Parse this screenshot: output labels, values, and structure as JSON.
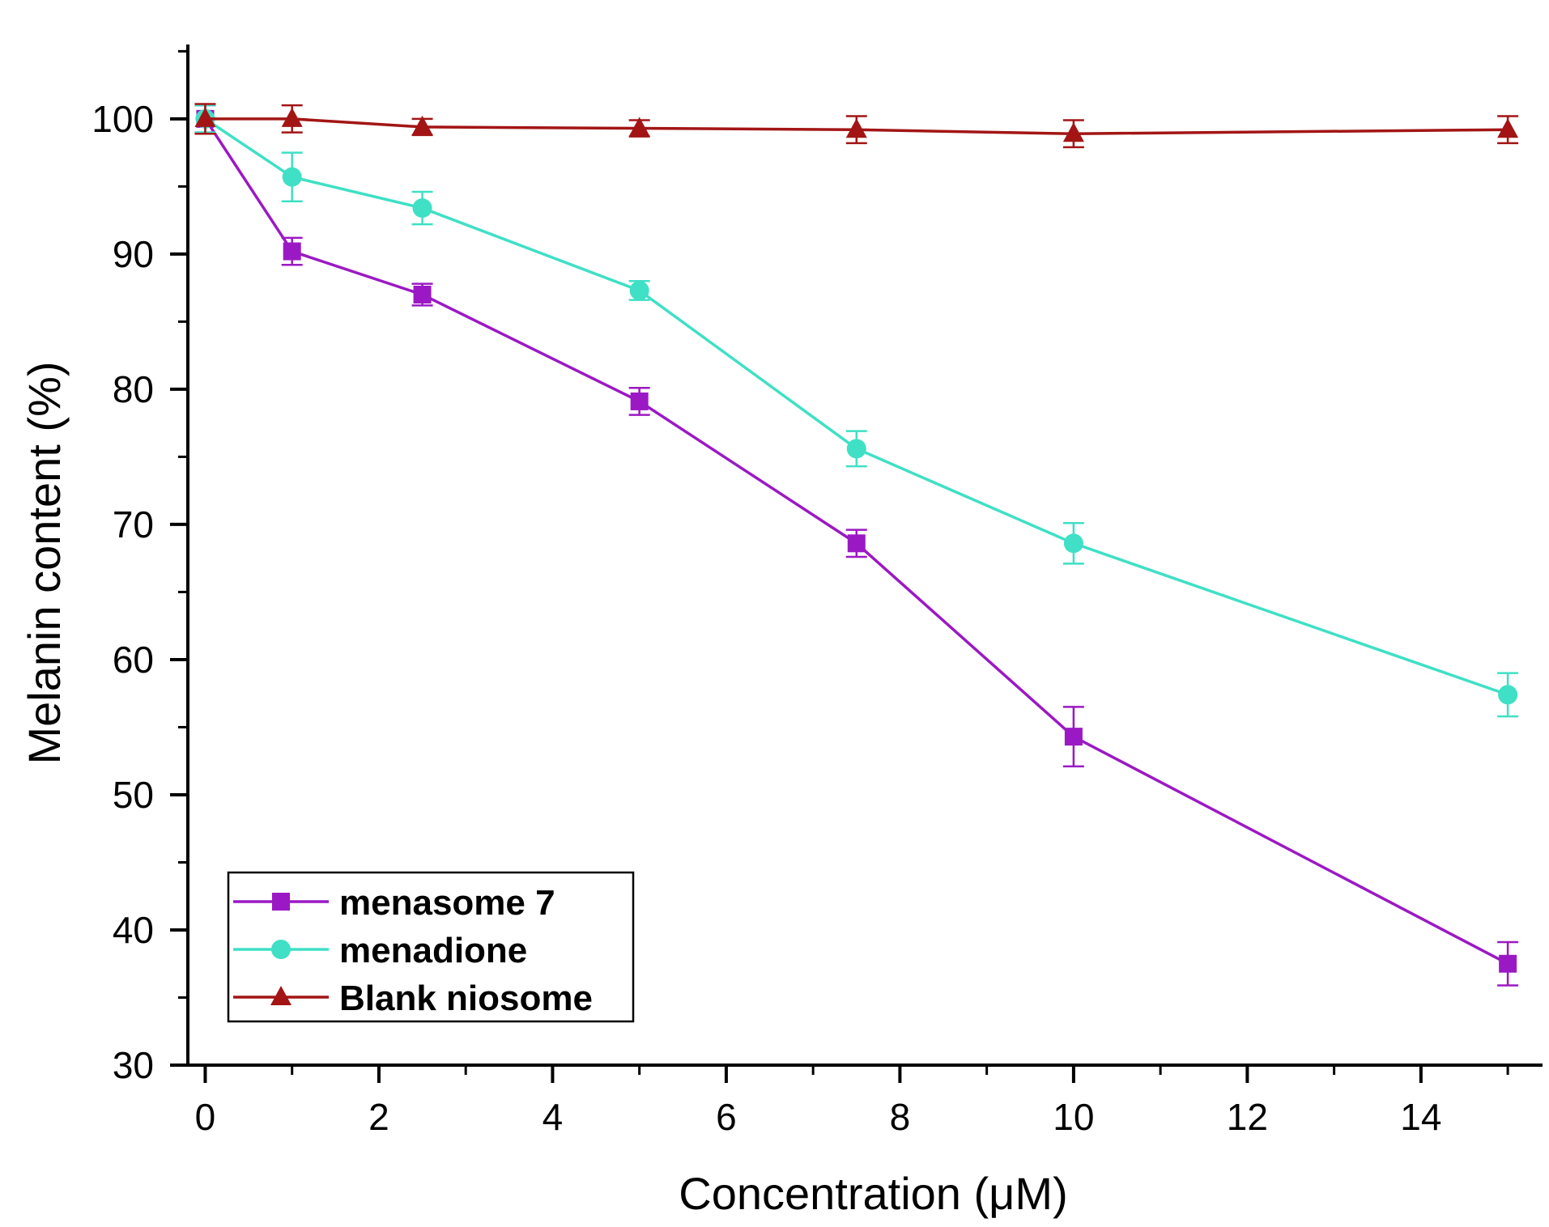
{
  "chart_data": {
    "type": "line",
    "title": "",
    "xlabel": "Concentration (μM)",
    "ylabel": "Melanin content (%)",
    "xlim": [
      -0.2,
      15.4
    ],
    "ylim": [
      30,
      105.5
    ],
    "xticks": [
      0,
      2,
      4,
      6,
      8,
      10,
      12,
      14
    ],
    "xtick_labels": [
      "0",
      "2",
      "4",
      "6",
      "8",
      "10",
      "12",
      "14"
    ],
    "yticks": [
      30,
      40,
      50,
      60,
      70,
      80,
      90,
      100
    ],
    "ytick_labels": [
      "30",
      "40",
      "50",
      "60",
      "70",
      "80",
      "90",
      "100"
    ],
    "grid": false,
    "legend_position": "bottom-left",
    "x": [
      0,
      1,
      2.5,
      5,
      7.5,
      10,
      15
    ],
    "series": [
      {
        "name": "menasome 7",
        "color": "#9b19c4",
        "marker": "square",
        "values": [
          100,
          90.2,
          87.0,
          79.1,
          68.6,
          54.3,
          37.5
        ],
        "errors": [
          1.0,
          1.0,
          0.8,
          1.0,
          1.0,
          2.2,
          1.6
        ]
      },
      {
        "name": "menadione",
        "color": "#3fe0c5",
        "marker": "circle",
        "values": [
          100,
          95.7,
          93.4,
          87.3,
          75.6,
          68.6,
          57.4
        ],
        "errors": [
          1.0,
          1.8,
          1.2,
          0.7,
          1.3,
          1.5,
          1.6
        ]
      },
      {
        "name": "Blank niosome",
        "color": "#a31515",
        "marker": "triangle",
        "values": [
          100,
          100,
          99.4,
          99.3,
          99.2,
          98.9,
          99.2
        ],
        "errors": [
          1.1,
          1.0,
          0.6,
          0.6,
          1.0,
          1.0,
          1.0
        ]
      }
    ]
  }
}
